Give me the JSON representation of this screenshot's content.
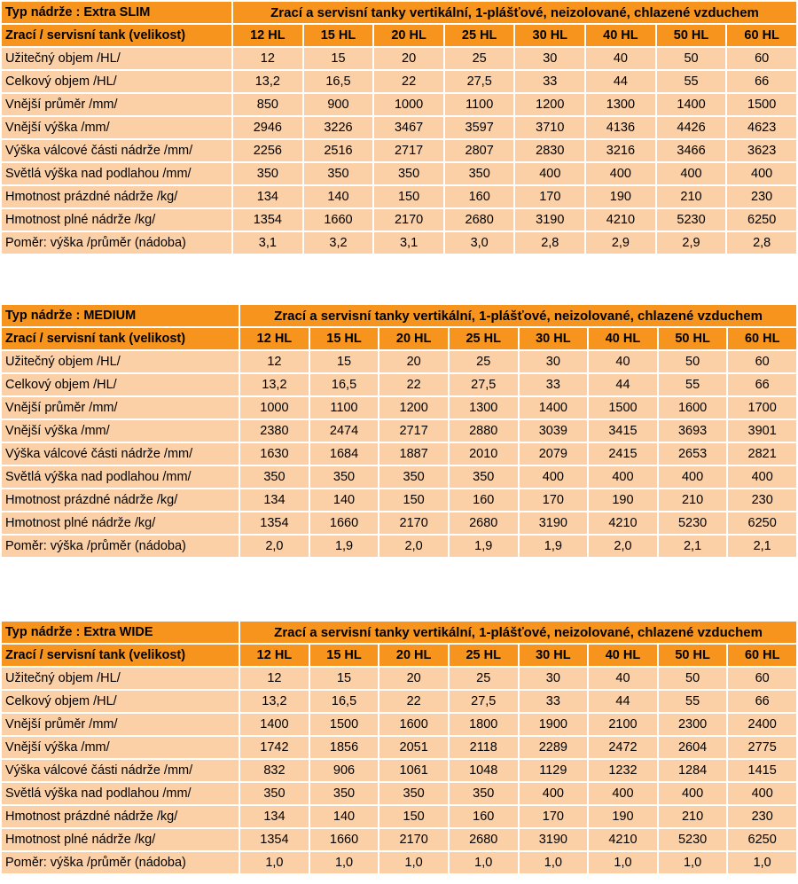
{
  "common": {
    "description": "Zrací  a  servisní tanky  vertikální, 1-plášťové, neizolované, chlazené vzduchem",
    "size_header": "Zrací / servisní tank (velikost)",
    "sizes": [
      "12 HL",
      "15 HL",
      "20 HL",
      "25 HL",
      "30 HL",
      "40 HL",
      "50 HL",
      "60 HL"
    ]
  },
  "tables": [
    {
      "type_label": "Typ nádrže : Extra SLIM",
      "rows": [
        {
          "label": "Užitečný objem /HL/",
          "values": [
            "12",
            "15",
            "20",
            "25",
            "30",
            "40",
            "50",
            "60"
          ]
        },
        {
          "label": "Celkový objem /HL/",
          "values": [
            "13,2",
            "16,5",
            "22",
            "27,5",
            "33",
            "44",
            "55",
            "66"
          ]
        },
        {
          "label": "Vnější průměr /mm/",
          "values": [
            "850",
            "900",
            "1000",
            "1100",
            "1200",
            "1300",
            "1400",
            "1500"
          ]
        },
        {
          "label": "Vnější výška /mm/",
          "values": [
            "2946",
            "3226",
            "3467",
            "3597",
            "3710",
            "4136",
            "4426",
            "4623"
          ]
        },
        {
          "label": "Výška válcové části nádrže /mm/",
          "values": [
            "2256",
            "2516",
            "2717",
            "2807",
            "2830",
            "3216",
            "3466",
            "3623"
          ]
        },
        {
          "label": "Světlá výška nad podlahou /mm/",
          "values": [
            "350",
            "350",
            "350",
            "350",
            "400",
            "400",
            "400",
            "400"
          ]
        },
        {
          "label": "Hmotnost prázdné nádrže /kg/",
          "values": [
            "134",
            "140",
            "150",
            "160",
            "170",
            "190",
            "210",
            "230"
          ]
        },
        {
          "label": "Hmotnost plné nádrže /kg/",
          "values": [
            "1354",
            "1660",
            "2170",
            "2680",
            "3190",
            "4210",
            "5230",
            "6250"
          ]
        },
        {
          "label": "Poměr:  výška /průměr (nádoba)",
          "values": [
            "3,1",
            "3,2",
            "3,1",
            "3,0",
            "2,8",
            "2,9",
            "2,9",
            "2,8"
          ]
        }
      ]
    },
    {
      "type_label": "Typ nádrže : MEDIUM",
      "rows": [
        {
          "label": "Užitečný objem /HL/",
          "values": [
            "12",
            "15",
            "20",
            "25",
            "30",
            "40",
            "50",
            "60"
          ]
        },
        {
          "label": "Celkový objem /HL/",
          "values": [
            "13,2",
            "16,5",
            "22",
            "27,5",
            "33",
            "44",
            "55",
            "66"
          ]
        },
        {
          "label": "Vnější průměr /mm/",
          "values": [
            "1000",
            "1100",
            "1200",
            "1300",
            "1400",
            "1500",
            "1600",
            "1700"
          ]
        },
        {
          "label": "Vnější výška /mm/",
          "values": [
            "2380",
            "2474",
            "2717",
            "2880",
            "3039",
            "3415",
            "3693",
            "3901"
          ]
        },
        {
          "label": "Výška válcové části nádrže /mm/",
          "values": [
            "1630",
            "1684",
            "1887",
            "2010",
            "2079",
            "2415",
            "2653",
            "2821"
          ]
        },
        {
          "label": "Světlá výška nad podlahou /mm/",
          "values": [
            "350",
            "350",
            "350",
            "350",
            "400",
            "400",
            "400",
            "400"
          ]
        },
        {
          "label": "Hmotnost prázdné nádrže /kg/",
          "values": [
            "134",
            "140",
            "150",
            "160",
            "170",
            "190",
            "210",
            "230"
          ]
        },
        {
          "label": "Hmotnost plné nádrže /kg/",
          "values": [
            "1354",
            "1660",
            "2170",
            "2680",
            "3190",
            "4210",
            "5230",
            "6250"
          ]
        },
        {
          "label": "Poměr:  výška /průměr (nádoba)",
          "values": [
            "2,0",
            "1,9",
            "2,0",
            "1,9",
            "1,9",
            "2,0",
            "2,1",
            "2,1"
          ]
        }
      ]
    },
    {
      "type_label": "Typ nádrže : Extra WIDE",
      "rows": [
        {
          "label": "Užitečný objem /HL/",
          "values": [
            "12",
            "15",
            "20",
            "25",
            "30",
            "40",
            "50",
            "60"
          ]
        },
        {
          "label": "Celkový objem /HL/",
          "values": [
            "13,2",
            "16,5",
            "22",
            "27,5",
            "33",
            "44",
            "55",
            "66"
          ]
        },
        {
          "label": "Vnější průměr /mm/",
          "values": [
            "1400",
            "1500",
            "1600",
            "1800",
            "1900",
            "2100",
            "2300",
            "2400"
          ]
        },
        {
          "label": "Vnější výška /mm/",
          "values": [
            "1742",
            "1856",
            "2051",
            "2118",
            "2289",
            "2472",
            "2604",
            "2775"
          ]
        },
        {
          "label": "Výška válcové části nádrže /mm/",
          "values": [
            "832",
            "906",
            "1061",
            "1048",
            "1129",
            "1232",
            "1284",
            "1415"
          ]
        },
        {
          "label": "Světlá výška nad podlahou /mm/",
          "values": [
            "350",
            "350",
            "350",
            "350",
            "400",
            "400",
            "400",
            "400"
          ]
        },
        {
          "label": "Hmotnost prázdné nádrže /kg/",
          "values": [
            "134",
            "140",
            "150",
            "160",
            "170",
            "190",
            "210",
            "230"
          ]
        },
        {
          "label": "Hmotnost plné nádrže /kg/",
          "values": [
            "1354",
            "1660",
            "2170",
            "2680",
            "3190",
            "4210",
            "5230",
            "6250"
          ]
        },
        {
          "label": "Poměr:  výška /průměr (nádoba)",
          "values": [
            "1,0",
            "1,0",
            "1,0",
            "1,0",
            "1,0",
            "1,0",
            "1,0",
            "1,0"
          ]
        }
      ]
    }
  ],
  "colors": {
    "header_orange": "#f7941d",
    "row_peach": "#fbd0a6"
  }
}
